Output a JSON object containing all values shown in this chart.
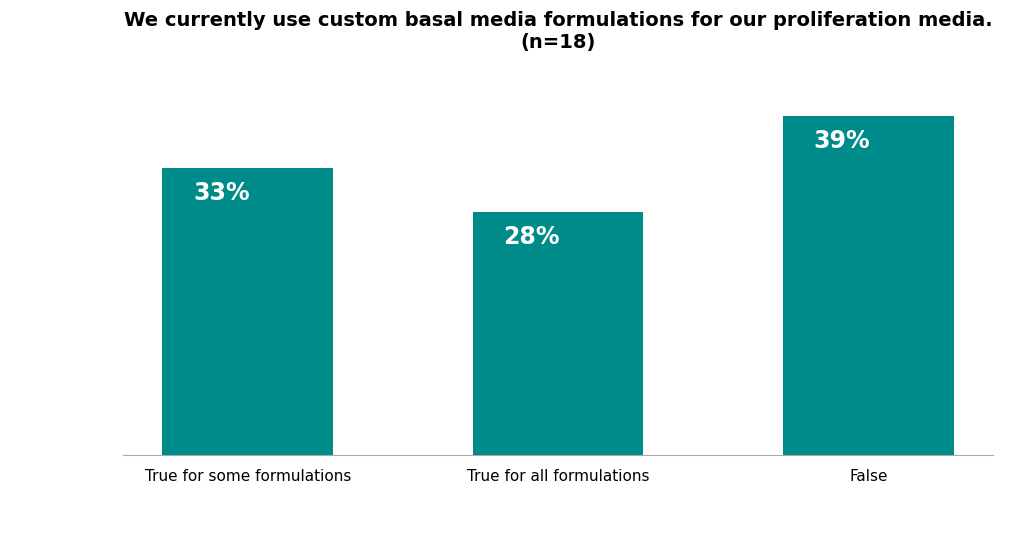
{
  "categories": [
    "True for some formulations",
    "True for all formulations",
    "False"
  ],
  "values": [
    33,
    28,
    39
  ],
  "bar_color": "#008B8B",
  "label_color": "#ffffff",
  "title_line1": "We currently use custom basal media formulations for our proliferation media.",
  "title_line2": "(n=18)",
  "title_fontsize": 14,
  "ylabel_fontsize": 11.5,
  "tick_fontsize": 11,
  "label_fontsize": 17,
  "background_color": "#ffffff",
  "ylim": [
    0,
    45
  ],
  "bar_width": 0.55
}
